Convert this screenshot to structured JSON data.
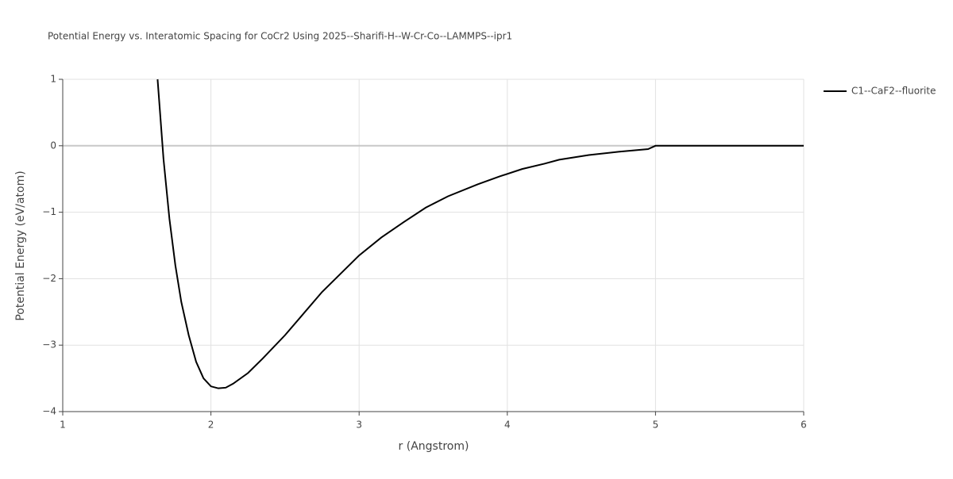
{
  "chart_data": {
    "type": "line",
    "title": "Potential Energy vs. Interatomic Spacing for CoCr2 Using 2025--Sharifi-H--W-Cr-Co--LAMMPS--ipr1",
    "x_label": "r (Angstrom)",
    "y_label": "Potential Energy (eV/atom)",
    "xlim": [
      1,
      6
    ],
    "xticks": [
      1,
      2,
      3,
      4,
      5,
      6
    ],
    "ylim": [
      -4,
      1
    ],
    "yticks": [
      {
        "value": -4,
        "label": "−4"
      },
      {
        "value": -3,
        "label": "−3"
      },
      {
        "value": -2,
        "label": "−2"
      },
      {
        "value": -1,
        "label": "−1"
      },
      0,
      1
    ],
    "grid": true,
    "series": [
      {
        "name": "C1--CaF2--fluorite",
        "color": "#000000",
        "x": [
          1.64,
          1.68,
          1.72,
          1.76,
          1.8,
          1.85,
          1.9,
          1.95,
          2.0,
          2.05,
          2.1,
          2.15,
          2.25,
          2.35,
          2.5,
          2.75,
          3.0,
          3.15,
          3.3,
          3.45,
          3.6,
          3.8,
          3.95,
          4.1,
          4.25,
          4.35,
          4.55,
          4.75,
          4.95,
          5.0,
          6.0
        ],
        "values": [
          1.0,
          -0.2,
          -1.1,
          -1.8,
          -2.35,
          -2.85,
          -3.25,
          -3.5,
          -3.62,
          -3.65,
          -3.64,
          -3.58,
          -3.42,
          -3.2,
          -2.85,
          -2.2,
          -1.65,
          -1.38,
          -1.15,
          -0.93,
          -0.76,
          -0.58,
          -0.46,
          -0.35,
          -0.27,
          -0.21,
          -0.14,
          -0.09,
          -0.05,
          0.0,
          0.0
        ]
      }
    ]
  }
}
